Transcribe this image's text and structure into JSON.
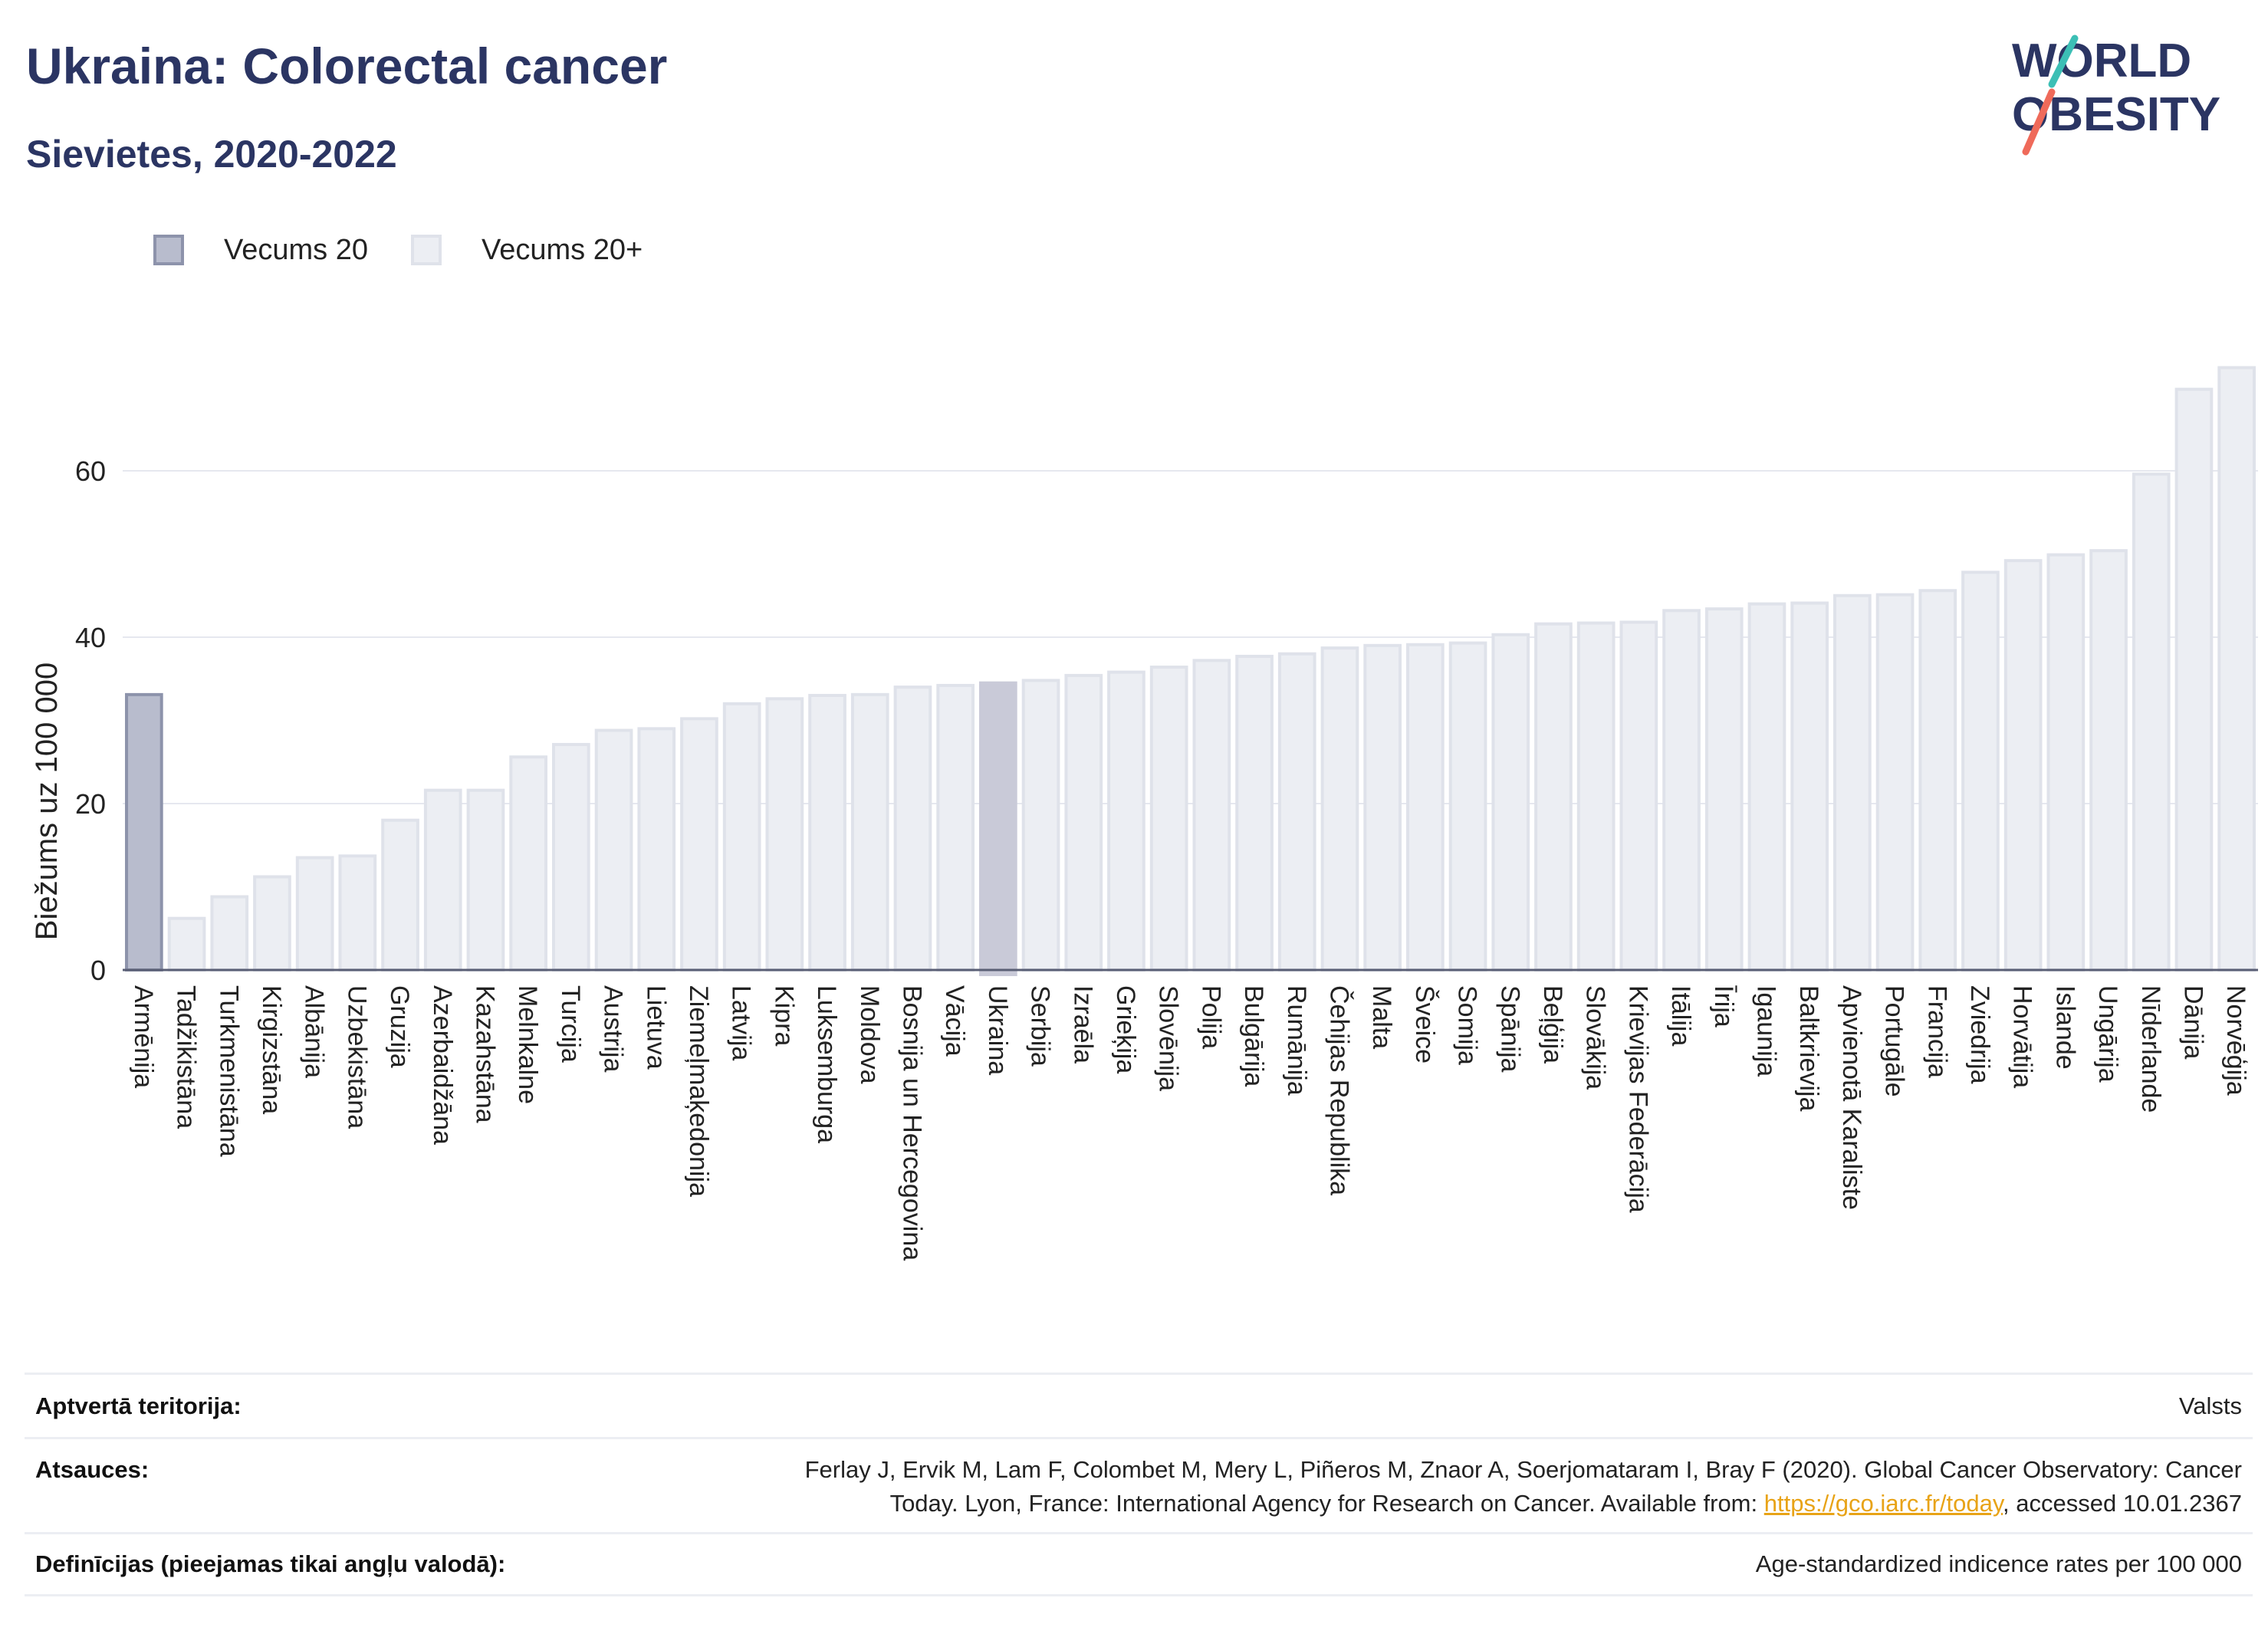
{
  "header": {
    "title": "Ukraina: Colorectal cancer",
    "subtitle": "Sievietes, 2020-2022"
  },
  "logo": {
    "line1": "WORLD",
    "line2": "OBESITY"
  },
  "legend": [
    {
      "label": "Vecums 20",
      "kind": "age20"
    },
    {
      "label": "Vecums 20+",
      "kind": "age20plus"
    }
  ],
  "colors": {
    "title": "#2b3563",
    "age20_fill": "#b8bccd",
    "age20_stroke": "#8d93ab",
    "age20plus_fill": "#eceef3",
    "age20plus_stroke": "#dfe2ea",
    "highlight_fill": "#c9cad8",
    "link": "#e8a317",
    "logo_teal": "#3cbfb5",
    "logo_coral": "#ef6a5a"
  },
  "chart_data": {
    "type": "bar",
    "ylabel": "Biežums uz 100 000",
    "ylim": [
      0,
      75
    ],
    "yticks": [
      0,
      20,
      40,
      60
    ],
    "grid": true,
    "legend_position": "top-left",
    "highlight": "Ukraina",
    "categories": [
      "Armēnija",
      "Tadžikistāna",
      "Turkmenistāna",
      "Kirgizstāna",
      "Albānija",
      "Uzbekistāna",
      "Gruzija",
      "Azerbaidžāna",
      "Kazahstāna",
      "Melnkalne",
      "Turcija",
      "Austrija",
      "Lietuva",
      "Ziemeļmaķedonija",
      "Latvija",
      "Kipra",
      "Luksemburga",
      "Moldova",
      "Bosnija un Hercegovina",
      "Vācija",
      "Ukraina",
      "Serbija",
      "Izraēla",
      "Grieķija",
      "Slovēnija",
      "Polija",
      "Bulgārija",
      "Rumānija",
      "Čehijas Republika",
      "Malta",
      "Šveice",
      "Somija",
      "Spānija",
      "Beļģija",
      "Slovākija",
      "Krievijas Federācija",
      "Itālija",
      "Īrija",
      "Igaunija",
      "Baltkrievija",
      "Apvienotā Karaliste",
      "Portugāle",
      "Francija",
      "Zviedrija",
      "Horvātija",
      "Islande",
      "Ungārija",
      "Nīderlande",
      "Dānija",
      "Norvēģija"
    ],
    "values": [
      33.1,
      6.2,
      8.8,
      11.2,
      13.5,
      13.7,
      18.0,
      21.6,
      21.6,
      25.6,
      27.1,
      28.8,
      29.0,
      30.2,
      32.0,
      32.6,
      33.0,
      33.1,
      34.0,
      34.2,
      34.5,
      34.8,
      35.4,
      35.8,
      36.4,
      37.2,
      37.7,
      38.0,
      38.7,
      39.0,
      39.1,
      39.3,
      40.3,
      41.6,
      41.7,
      41.8,
      43.2,
      43.4,
      44.0,
      44.1,
      45.0,
      45.1,
      45.6,
      47.8,
      49.2,
      49.9,
      50.4,
      59.6,
      69.8,
      72.4
    ],
    "series_kind": [
      "age20",
      "age20plus",
      "age20plus",
      "age20plus",
      "age20plus",
      "age20plus",
      "age20plus",
      "age20plus",
      "age20plus",
      "age20plus",
      "age20plus",
      "age20plus",
      "age20plus",
      "age20plus",
      "age20plus",
      "age20plus",
      "age20plus",
      "age20plus",
      "age20plus",
      "age20plus",
      "age20plus",
      "age20plus",
      "age20plus",
      "age20plus",
      "age20plus",
      "age20plus",
      "age20plus",
      "age20plus",
      "age20plus",
      "age20plus",
      "age20plus",
      "age20plus",
      "age20plus",
      "age20plus",
      "age20plus",
      "age20plus",
      "age20plus",
      "age20plus",
      "age20plus",
      "age20plus",
      "age20plus",
      "age20plus",
      "age20plus",
      "age20plus",
      "age20plus",
      "age20plus",
      "age20plus",
      "age20plus",
      "age20plus",
      "age20plus"
    ]
  },
  "footer": {
    "coverage_label": "Aptvertā teritorija:",
    "coverage_value": "Valsts",
    "references_label": "Atsauces:",
    "references_line1": "Ferlay J, Ervik M, Lam F, Colombet M, Mery L, Piñeros M, Znaor A, Soerjomataram I, Bray F (2020). Global Cancer Observatory: Cancer",
    "references_line2_before": "Today. Lyon, France: International Agency for Research on Cancer. Available from: ",
    "references_link": "https://gco.iarc.fr/today",
    "references_line2_after": ", accessed 10.01.2367",
    "definitions_label": "Definīcijas (pieejamas tikai angļu valodā):",
    "definitions_value": "Age-standardized indicence rates per 100 000"
  }
}
